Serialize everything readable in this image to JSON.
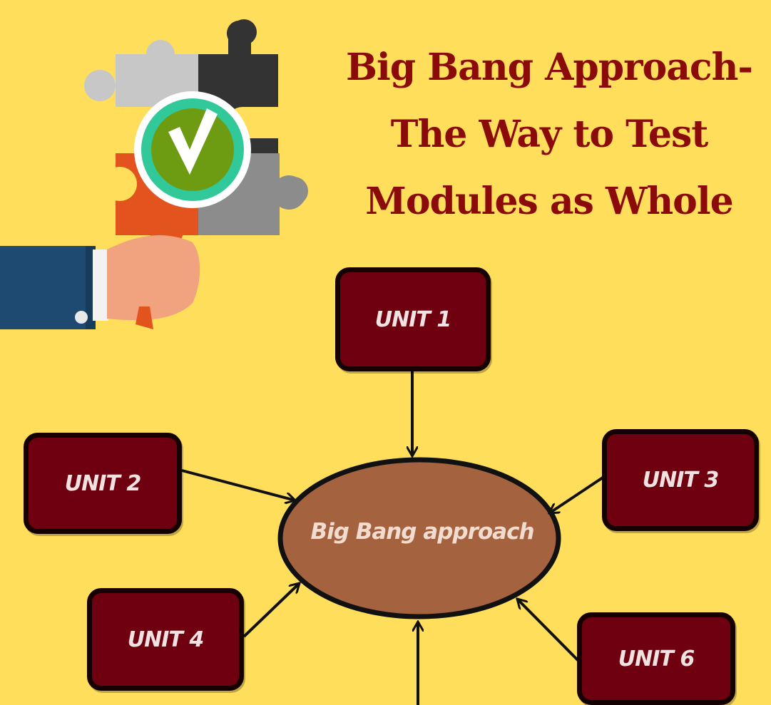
{
  "title": {
    "lines": [
      "Big Bang Approach-",
      "The Way to Test",
      "Modules as Whole"
    ]
  },
  "diagram": {
    "center_label": "Big Bang approach",
    "units": [
      {
        "id": "unit-1",
        "label": "UNIT 1"
      },
      {
        "id": "unit-2",
        "label": "UNIT 2"
      },
      {
        "id": "unit-3",
        "label": "UNIT 3"
      },
      {
        "id": "unit-4",
        "label": "UNIT 4"
      },
      {
        "id": "unit-6",
        "label": "UNIT 6"
      }
    ]
  },
  "colors": {
    "background": "#FEDE5B",
    "title_text": "#8B0A0A",
    "unit_box_fill": "#6E0010",
    "center_ellipse_fill": "#A5623F",
    "arrow": "#111111"
  },
  "illustration": {
    "icons": [
      "puzzle-icon",
      "magnifier-icon",
      "check-icon",
      "hand-icon"
    ]
  }
}
